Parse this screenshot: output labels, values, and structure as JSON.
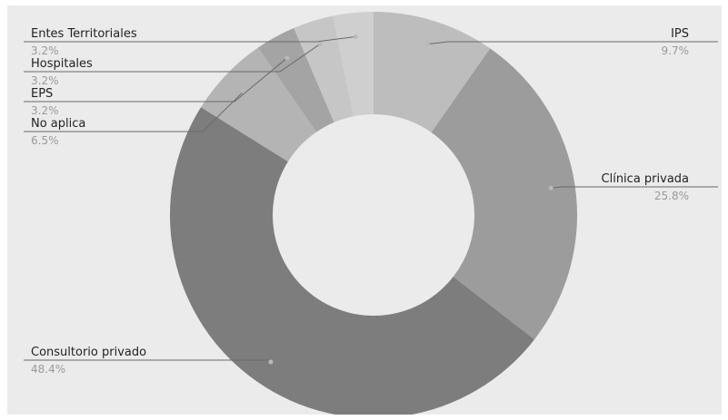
{
  "colors": {
    "background": "#ebebeb",
    "slices": [
      "#bdbdbd",
      "#9c9c9c",
      "#7d7d7d",
      "#b4b4b4",
      "#a4a4a4",
      "#c6c6c6",
      "#cfcfcf"
    ]
  },
  "chart_data": {
    "type": "pie",
    "variant": "donut",
    "title": "",
    "categories": [
      "IPS",
      "Clínica privada",
      "Consultorio privado",
      "No aplica",
      "EPS",
      "Hospitales",
      "Entes Territoriales"
    ],
    "values": [
      9.7,
      25.8,
      48.4,
      6.5,
      3.2,
      3.2,
      3.2
    ],
    "labels": [
      "9.7%",
      "25.8%",
      "48.4%",
      "6.5%",
      "3.2%",
      "3.2%",
      "3.2%"
    ],
    "legend": "none",
    "label_style": "callouts"
  }
}
